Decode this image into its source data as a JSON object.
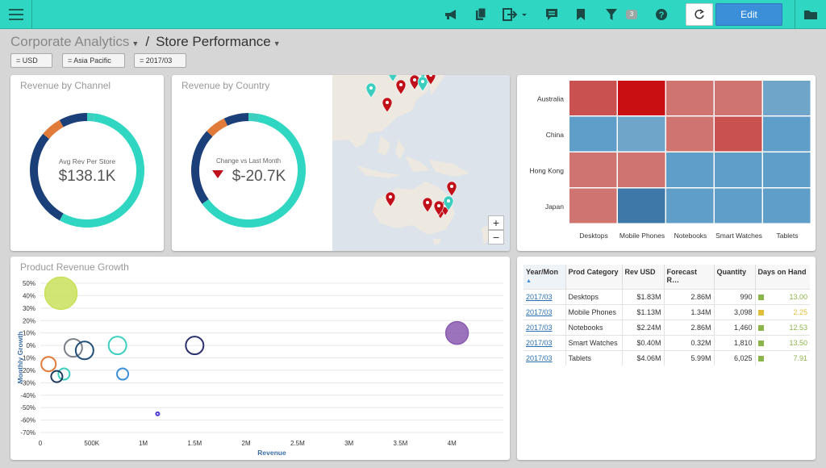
{
  "toolbar": {
    "edit_label": "Edit",
    "filter_count": "3",
    "icons": [
      "hamburger-icon",
      "megaphone-icon",
      "copy-icon",
      "export-icon",
      "comment-icon",
      "bookmark-icon",
      "filter-icon",
      "help-icon",
      "refresh-icon",
      "folder-icon"
    ]
  },
  "breadcrumb": {
    "parent": "Corporate Analytics",
    "sep": "/",
    "current": "Store Performance"
  },
  "filters": [
    "= USD",
    "= Asia Pacific",
    "= 2017/03"
  ],
  "channel_panel": {
    "title": "Revenue by Channel",
    "kpi_label": "Avg Rev Per Store",
    "kpi_value": "$138.1K"
  },
  "country_panel": {
    "title": "Revenue by Country",
    "kpi_label": "Change vs Last Month",
    "kpi_value": "$-20.7K"
  },
  "map": {
    "zoom_in": "+",
    "zoom_out": "−"
  },
  "heatmap": {
    "rows": [
      "Australia",
      "China",
      "Hong Kong",
      "Japan"
    ],
    "cols": [
      "Desktops",
      "Mobile Phones",
      "Notebooks",
      "Smart Watches",
      "Tablets"
    ]
  },
  "growth_panel": {
    "title": "Product Revenue Growth"
  },
  "chart_data": {
    "type": "scatter",
    "title": "Product Revenue Growth",
    "xlabel": "Revenue",
    "ylabel": "Monthly Growth",
    "xlim": [
      0,
      4500000
    ],
    "ylim": [
      -70,
      50
    ],
    "x_ticks": [
      "0",
      "500K",
      "1M",
      "1.5M",
      "2M",
      "2.5M",
      "3M",
      "3.5M",
      "4M"
    ],
    "y_ticks": [
      "50%",
      "40%",
      "30%",
      "20%",
      "10%",
      "0%",
      "-10%",
      "-20%",
      "-30%",
      "-40%",
      "-50%",
      "-60%",
      "-70%"
    ],
    "points": [
      {
        "x": 200000,
        "y": 42,
        "r": 20,
        "color": "#c8e05a",
        "filled": true
      },
      {
        "x": 4050000,
        "y": 10,
        "r": 14,
        "color": "#8a5bb0",
        "filled": true
      },
      {
        "x": 320000,
        "y": -2,
        "r": 11,
        "color": "#7a7f8a",
        "filled": false
      },
      {
        "x": 430000,
        "y": -4,
        "r": 11,
        "color": "#1f4e79",
        "filled": false
      },
      {
        "x": 750000,
        "y": 0,
        "r": 11,
        "color": "#3ccfc0",
        "filled": false
      },
      {
        "x": 1500000,
        "y": 0,
        "r": 11,
        "color": "#2c2f6e",
        "filled": false
      },
      {
        "x": 80000,
        "y": -15,
        "r": 9,
        "color": "#e07b3a",
        "filled": false
      },
      {
        "x": 230000,
        "y": -23,
        "r": 7,
        "color": "#3ccfc0",
        "filled": false
      },
      {
        "x": 160000,
        "y": -25,
        "r": 7,
        "color": "#1f3a5a",
        "filled": false
      },
      {
        "x": 800000,
        "y": -23,
        "r": 7,
        "color": "#3b8fd9",
        "filled": false
      },
      {
        "x": 1140000,
        "y": -55,
        "r": 2,
        "color": "#4a3dd1",
        "filled": false
      }
    ]
  },
  "table": {
    "columns": [
      "Year/Mon",
      "Prod Category",
      "Rev USD",
      "Forecast R…",
      "Quantity",
      "Days on Hand"
    ],
    "rows": [
      {
        "ym": "2017/03",
        "cat": "Desktops",
        "rev": "$1.83M",
        "fc": "2.86M",
        "qty": "990",
        "days": "13.00",
        "color": "#8bb54a"
      },
      {
        "ym": "2017/03",
        "cat": "Mobile Phones",
        "rev": "$1.13M",
        "fc": "1.34M",
        "qty": "3,098",
        "days": "2.25",
        "color": "#e0bf3a"
      },
      {
        "ym": "2017/03",
        "cat": "Notebooks",
        "rev": "$2.24M",
        "fc": "2.86M",
        "qty": "1,460",
        "days": "12.53",
        "color": "#8bb54a"
      },
      {
        "ym": "2017/03",
        "cat": "Smart Watches",
        "rev": "$0.40M",
        "fc": "0.32M",
        "qty": "1,810",
        "days": "13.50",
        "color": "#8bb54a"
      },
      {
        "ym": "2017/03",
        "cat": "Tablets",
        "rev": "$4.06M",
        "fc": "5.99M",
        "qty": "6,025",
        "days": "7.91",
        "color": "#8bb54a"
      }
    ]
  }
}
